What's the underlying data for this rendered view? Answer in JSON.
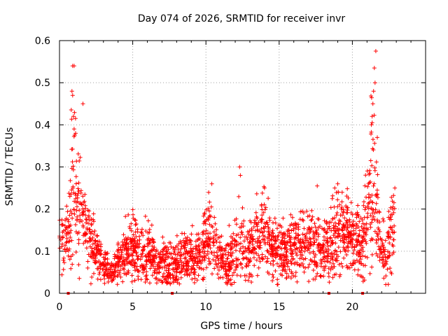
{
  "colors": {
    "series": "#ff0000",
    "grid": "#a0a0a0",
    "axis": "#000000",
    "background": "#ffffff"
  },
  "chart_data": {
    "type": "scatter",
    "title": "Day 074 of 2026, SRMTID for receiver invr",
    "xlabel": "GPS time / hours",
    "ylabel": "SRMTID / TECUs",
    "xlim": [
      0,
      25
    ],
    "ylim": [
      0,
      0.6
    ],
    "xticks": [
      0,
      5,
      10,
      15,
      20
    ],
    "xtick_labels": [
      "0",
      "5",
      "10",
      "15",
      "20"
    ],
    "yticks": [
      0,
      0.1,
      0.2,
      0.3,
      0.4,
      0.5,
      0.6
    ],
    "ytick_labels": [
      "0",
      "0.1",
      "0.2",
      "0.3",
      "0.4",
      "0.5",
      "0.6"
    ],
    "grid": true,
    "marker": "+",
    "series": [
      {
        "name": "SRMTID",
        "profile_hours": [
          0,
          0.3,
          0.6,
          0.8,
          1.0,
          1.2,
          1.5,
          1.8,
          2.2,
          2.6,
          3.0,
          3.4,
          3.8,
          4.2,
          4.6,
          5.0,
          5.5,
          6.0,
          6.5,
          7.0,
          7.5,
          8.0,
          8.5,
          9.0,
          9.5,
          10.0,
          10.3,
          10.6,
          11.0,
          11.5,
          12.0,
          12.3,
          12.6,
          13.0,
          13.5,
          14.0,
          14.5,
          15.0,
          15.5,
          16.0,
          16.5,
          17.0,
          17.5,
          18.0,
          18.5,
          19.0,
          19.5,
          20.0,
          20.4,
          20.8,
          21.1,
          21.3,
          21.5,
          21.7,
          22.0,
          22.3,
          22.5,
          22.8
        ],
        "profile_center": [
          0.11,
          0.12,
          0.13,
          0.22,
          0.27,
          0.21,
          0.18,
          0.16,
          0.12,
          0.1,
          0.07,
          0.05,
          0.06,
          0.09,
          0.1,
          0.11,
          0.09,
          0.1,
          0.08,
          0.07,
          0.06,
          0.07,
          0.08,
          0.08,
          0.08,
          0.12,
          0.16,
          0.11,
          0.08,
          0.07,
          0.1,
          0.15,
          0.11,
          0.1,
          0.13,
          0.15,
          0.11,
          0.1,
          0.1,
          0.11,
          0.12,
          0.12,
          0.11,
          0.1,
          0.12,
          0.14,
          0.13,
          0.14,
          0.11,
          0.13,
          0.2,
          0.28,
          0.23,
          0.17,
          0.1,
          0.07,
          0.12,
          0.16
        ],
        "profile_spread": [
          0.04,
          0.04,
          0.05,
          0.1,
          0.12,
          0.09,
          0.07,
          0.05,
          0.04,
          0.03,
          0.02,
          0.02,
          0.02,
          0.03,
          0.04,
          0.04,
          0.04,
          0.04,
          0.03,
          0.03,
          0.03,
          0.03,
          0.03,
          0.03,
          0.03,
          0.05,
          0.06,
          0.04,
          0.03,
          0.03,
          0.04,
          0.07,
          0.04,
          0.04,
          0.05,
          0.05,
          0.04,
          0.04,
          0.04,
          0.04,
          0.04,
          0.05,
          0.04,
          0.04,
          0.05,
          0.05,
          0.05,
          0.05,
          0.04,
          0.05,
          0.09,
          0.13,
          0.1,
          0.06,
          0.04,
          0.03,
          0.05,
          0.05
        ],
        "peaks": [
          {
            "x": 0.9,
            "y": 0.54
          },
          {
            "x": 1.0,
            "y": 0.54
          },
          {
            "x": 0.85,
            "y": 0.48
          },
          {
            "x": 0.9,
            "y": 0.47
          },
          {
            "x": 1.6,
            "y": 0.45
          },
          {
            "x": 0.95,
            "y": 0.42
          },
          {
            "x": 1.0,
            "y": 0.39
          },
          {
            "x": 1.1,
            "y": 0.38
          },
          {
            "x": 10.4,
            "y": 0.26
          },
          {
            "x": 12.3,
            "y": 0.3
          },
          {
            "x": 12.35,
            "y": 0.28
          },
          {
            "x": 14.0,
            "y": 0.25
          },
          {
            "x": 17.6,
            "y": 0.255
          },
          {
            "x": 19.0,
            "y": 0.26
          },
          {
            "x": 21.6,
            "y": 0.575
          },
          {
            "x": 21.5,
            "y": 0.535
          },
          {
            "x": 21.55,
            "y": 0.5
          },
          {
            "x": 21.45,
            "y": 0.48
          },
          {
            "x": 21.4,
            "y": 0.45
          },
          {
            "x": 21.35,
            "y": 0.42
          },
          {
            "x": 21.3,
            "y": 0.4
          },
          {
            "x": 21.7,
            "y": 0.37
          },
          {
            "x": 22.9,
            "y": 0.25
          }
        ],
        "coverage_hours": [
          0,
          22.9
        ]
      }
    ],
    "gap_markers_x": [
      0.6,
      7.7,
      18.4,
      20.7
    ]
  }
}
